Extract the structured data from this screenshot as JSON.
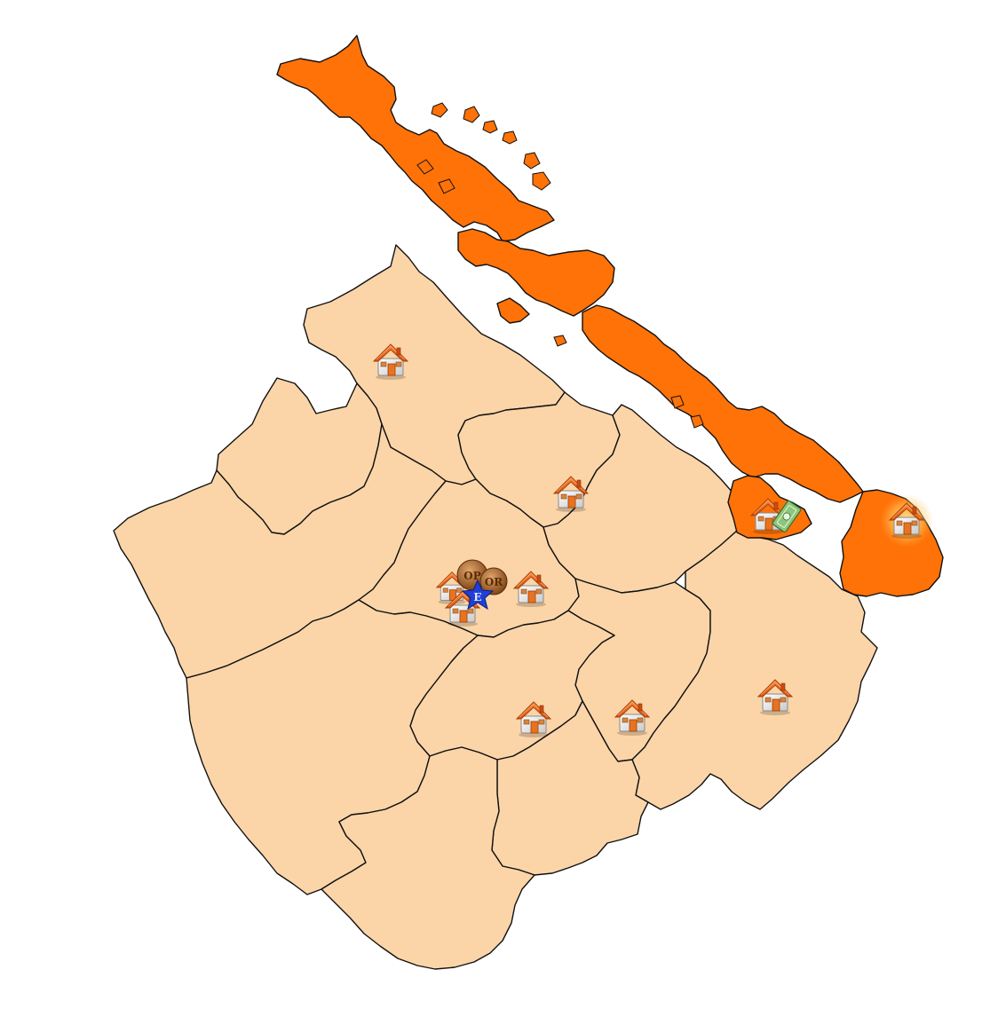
{
  "colors": {
    "region_light": "#fbd5a8",
    "region_dark": "#ff7208",
    "border": "#111111",
    "house_roof": "#f06a1d",
    "house_wall": "#f4f4f4",
    "badge_bronze": "#9a5a22",
    "star_blue": "#1f3fd8",
    "money_green": "#7bb86a"
  },
  "regions": [
    {
      "id": "north-west",
      "shade": "light",
      "icon": "house-icon"
    },
    {
      "id": "west-ridge",
      "shade": "light",
      "icon": null
    },
    {
      "id": "north-central",
      "shade": "light",
      "icon": "house-icon"
    },
    {
      "id": "central",
      "shade": "light",
      "icon": "house-icon"
    },
    {
      "id": "central-east",
      "shade": "light",
      "icon": "house-icon"
    },
    {
      "id": "south-central",
      "shade": "light",
      "icon": "house-icon"
    },
    {
      "id": "south-east-mid",
      "shade": "light",
      "icon": "house-icon"
    },
    {
      "id": "east",
      "shade": "light",
      "icon": "house-icon"
    },
    {
      "id": "south-west",
      "shade": "light",
      "icon": null
    },
    {
      "id": "south",
      "shade": "light",
      "icon": null
    },
    {
      "id": "peninsula-west",
      "shade": "dark",
      "icon": "house-icon"
    },
    {
      "id": "peninsula-east",
      "shade": "dark",
      "icon": "house-icon"
    },
    {
      "id": "island-chain",
      "shade": "dark",
      "icon": null
    }
  ],
  "markers": {
    "badges": [
      {
        "icon": "badge-icon",
        "label": "OP"
      },
      {
        "icon": "badge-icon",
        "label": "OR"
      },
      {
        "icon": "star-icon",
        "label": "E"
      }
    ],
    "money": {
      "icon": "banknote-icon"
    }
  }
}
